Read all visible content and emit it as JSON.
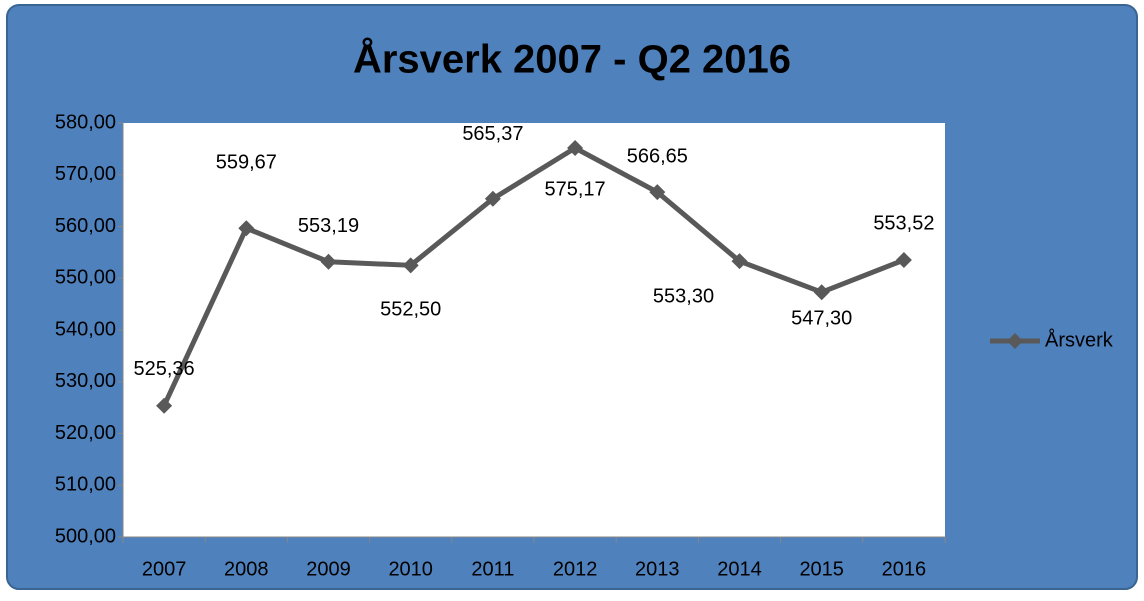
{
  "chart_data": {
    "type": "line",
    "title": "Årsverk 2007 - Q2 2016",
    "categories": [
      "2007",
      "2008",
      "2009",
      "2010",
      "2011",
      "2012",
      "2013",
      "2014",
      "2015",
      "2016"
    ],
    "series": [
      {
        "name": "Årsverk",
        "color": "#595959",
        "values": [
          525.36,
          559.67,
          553.19,
          552.5,
          565.37,
          575.17,
          566.65,
          553.3,
          547.3,
          553.52
        ],
        "value_labels": [
          "525,36",
          "559,67",
          "553,19",
          "552,50",
          "565,37",
          "575,17",
          "566,65",
          "553,30",
          "547,30",
          "553,52"
        ]
      }
    ],
    "ylim": [
      500,
      580
    ],
    "yticks": [
      {
        "value": 500,
        "label": "500,00"
      },
      {
        "value": 510,
        "label": "510,00"
      },
      {
        "value": 520,
        "label": "520,00"
      },
      {
        "value": 530,
        "label": "530,00"
      },
      {
        "value": 540,
        "label": "540,00"
      },
      {
        "value": 550,
        "label": "550,00"
      },
      {
        "value": 560,
        "label": "560,00"
      },
      {
        "value": 570,
        "label": "570,00"
      },
      {
        "value": 580,
        "label": "580,00"
      }
    ],
    "legend": "right",
    "background": "#4f81bd"
  }
}
